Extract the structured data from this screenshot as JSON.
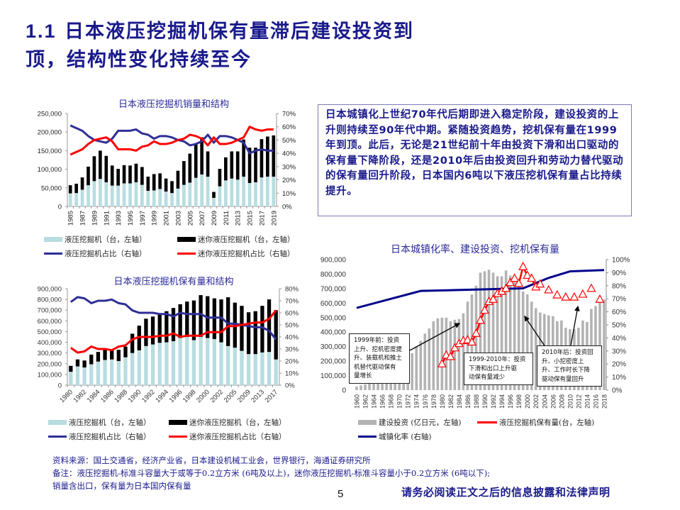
{
  "page": {
    "title_num": "1.1",
    "title_line1": "日本液压挖掘机保有量滞后建设投资到",
    "title_line2": "顶，结构性变化持续至今",
    "summary": "日本城镇化上世纪70年代后期即进入稳定阶段，建设投资的上升则持续至90年代中期。紧随投资趋势，挖机保有量在1999年到顶。此后，无论是21世纪前十年由投资下滑和出口驱动的保有量下降阶段，还是2010年后由投资回升和劳动力替代驱动的保有量回升阶段，日本国内6吨以下液压挖机保有量占比持续提升。",
    "footer": {
      "source": "资料来源：国土交通省，经济产业省，日本建设机械工业会，世界银行，海通证券研究所",
      "note": "备注：液压挖掘机-标准斗容量大于或等于0.2立方米 (6吨及以上)，迷你液压挖掘机-标准斗容量小于0.2立方米 (6吨以下);",
      "note2": "销量含出口，保有量为日本国内保有量",
      "page_number": "5",
      "disclaimer": "请务必阅读正文之后的信息披露和法律声明"
    },
    "colors": {
      "title": "#1a1a8c",
      "hydraulic": "#b7dde0",
      "mini": "#000000",
      "hyd_share": "#2e2e96",
      "mini_share": "#ff0000",
      "investment": "#b3b3b3",
      "urban": "#00008b"
    }
  },
  "chart_data": [
    {
      "type": "bar",
      "title": "日本液压挖掘机销量和结构",
      "stacked": true,
      "categories": [
        "1985",
        "1986",
        "1987",
        "1988",
        "1989",
        "1990",
        "1991",
        "1992",
        "1993",
        "1994",
        "1995",
        "1996",
        "1997",
        "1998",
        "1999",
        "2000",
        "2001",
        "2002",
        "2003",
        "2004",
        "2005",
        "2006",
        "2007",
        "2008",
        "2009",
        "2010",
        "2011",
        "2012",
        "2013",
        "2014",
        "2015",
        "2016",
        "2017",
        "2018",
        "2019"
      ],
      "x_tick_labels": [
        "1985",
        "1987",
        "1989",
        "1991",
        "1993",
        "1995",
        "1997",
        "1999",
        "2001",
        "2003",
        "2005",
        "2007",
        "2009",
        "2011",
        "2013",
        "2015",
        "2017",
        "2019"
      ],
      "series": [
        {
          "name": "液压挖掘机（台，左轴）",
          "axis": "left",
          "kind": "bar",
          "values": [
            35000,
            36000,
            45000,
            57000,
            68000,
            74000,
            65000,
            56000,
            56000,
            62000,
            62000,
            65000,
            58000,
            42000,
            43000,
            47000,
            40000,
            36000,
            48000,
            58000,
            64000,
            77000,
            86000,
            80000,
            23000,
            54000,
            70000,
            75000,
            72000,
            80000,
            63000,
            65000,
            78000,
            80000,
            80000
          ]
        },
        {
          "name": "迷你液压挖掘机（台，左轴）",
          "axis": "left",
          "kind": "bar",
          "values": [
            22000,
            25000,
            33000,
            50000,
            67000,
            76000,
            71000,
            54000,
            45000,
            49000,
            48000,
            50000,
            48000,
            38000,
            44000,
            42000,
            35000,
            32000,
            48000,
            64000,
            78000,
            90000,
            100000,
            68000,
            16000,
            47000,
            62000,
            73000,
            76000,
            100000,
            95000,
            93000,
            103000,
            108000,
            111000
          ]
        },
        {
          "name": "液压挖掘机占比（右轴）",
          "axis": "right",
          "kind": "line",
          "values": [
            61,
            59,
            57,
            53,
            50,
            49,
            48,
            51,
            57,
            57,
            57,
            58,
            55,
            54,
            51,
            53,
            53,
            52,
            50,
            49,
            46,
            47,
            49,
            54,
            48,
            53,
            53,
            52,
            50,
            48,
            40,
            42,
            43,
            42,
            42
          ]
        },
        {
          "name": "迷你液压挖掘机占比（右轴）",
          "axis": "right",
          "kind": "line",
          "values": [
            39,
            41,
            43,
            47,
            50,
            51,
            52,
            49,
            43,
            43,
            43,
            42,
            45,
            46,
            49,
            47,
            47,
            48,
            50,
            51,
            54,
            53,
            51,
            46,
            52,
            47,
            47,
            48,
            50,
            52,
            60,
            58,
            57,
            58,
            58
          ]
        }
      ],
      "ylim_left": [
        0,
        250000
      ],
      "y_ticks_left": [
        "0",
        "50,000",
        "100,000",
        "150,000",
        "200,000",
        "250,000"
      ],
      "ylim_right": [
        0,
        70
      ],
      "y_ticks_right": [
        "0%",
        "10%",
        "20%",
        "30%",
        "40%",
        "50%",
        "60%",
        "70%"
      ],
      "legend": [
        "液压挖掘机（台，左轴）",
        "迷你液压挖掘机（台，左轴）",
        "液压挖掘机占比（右轴）",
        "迷你液压挖掘机占比（右轴）"
      ],
      "legend_position": "bottom"
    },
    {
      "type": "bar",
      "title": "日本液压挖掘机保有量和结构",
      "stacked": true,
      "categories": [
        "1980",
        "1981",
        "1982",
        "1983",
        "1984",
        "1985",
        "1986",
        "1987",
        "1988",
        "1989",
        "1990",
        "1991",
        "1992",
        "1993",
        "1994",
        "1995",
        "1996",
        "1997",
        "1998",
        "1999",
        "2000",
        "2001",
        "2002",
        "2003",
        "2005",
        "2007",
        "2009",
        "2011",
        "2013",
        "2015",
        "2017"
      ],
      "x_tick_labels": [
        "1980",
        "1982",
        "1984",
        "1986",
        "1988",
        "1990",
        "1992",
        "1994",
        "1996",
        "1998",
        "2000",
        "2002",
        "2005",
        "2009",
        "2013",
        "2017"
      ],
      "series": [
        {
          "name": "液压挖掘机（台，左轴）",
          "axis": "left",
          "kind": "bar",
          "values": [
            125000,
            175000,
            165000,
            195000,
            220000,
            235000,
            240000,
            225000,
            260000,
            300000,
            325000,
            365000,
            380000,
            395000,
            400000,
            410000,
            440000,
            450000,
            420000,
            450000,
            440000,
            430000,
            400000,
            365000,
            350000,
            320000,
            290000,
            290000,
            305000,
            310000,
            240000
          ]
        },
        {
          "name": "迷你液压挖掘机（台，左轴）",
          "axis": "left",
          "kind": "bar",
          "values": [
            55000,
            65000,
            65000,
            90000,
            90000,
            105000,
            90000,
            105000,
            100000,
            180000,
            230000,
            255000,
            260000,
            270000,
            290000,
            310000,
            315000,
            330000,
            370000,
            390000,
            390000,
            380000,
            400000,
            455000,
            420000,
            420000,
            390000,
            400000,
            435000,
            490000,
            460000
          ]
        },
        {
          "name": "液压挖掘机占比（右轴）",
          "axis": "right",
          "kind": "line",
          "values": [
            69,
            73,
            72,
            68,
            70,
            70,
            71,
            68,
            67,
            62,
            60,
            60,
            60,
            59,
            59,
            57,
            60,
            59,
            59,
            59,
            56,
            56,
            56,
            51,
            51,
            50,
            49,
            48,
            48,
            45,
            38
          ]
        },
        {
          "name": "迷你液压挖掘机占比（右轴）",
          "axis": "right",
          "kind": "line",
          "values": [
            31,
            27,
            28,
            32,
            30,
            30,
            29,
            32,
            33,
            38,
            40,
            40,
            40,
            41,
            41,
            43,
            40,
            41,
            41,
            41,
            44,
            44,
            44,
            49,
            49,
            50,
            51,
            52,
            52,
            55,
            62
          ]
        }
      ],
      "ylim_left": [
        0,
        900000
      ],
      "y_ticks_left": [
        "0",
        "100,000",
        "200,000",
        "300,000",
        "400,000",
        "500,000",
        "600,000",
        "700,000",
        "800,000",
        "900,000"
      ],
      "ylim_right": [
        0,
        80
      ],
      "y_ticks_right": [
        "0%",
        "10%",
        "20%",
        "30%",
        "40%",
        "50%",
        "60%",
        "70%",
        "80%"
      ],
      "legend": [
        "液压挖掘机（台，左轴）",
        "迷你液压挖掘机（台，左轴）",
        "液压挖掘机占比（右轴）",
        "迷你液压挖掘机占比（右轴）"
      ],
      "legend_position": "bottom"
    },
    {
      "type": "bar",
      "title": "日本城镇化率、建设投资、挖机保有量",
      "x_start": 1960,
      "x_end": 2018,
      "x_tick_labels": [
        "1960",
        "1962",
        "1964",
        "1966",
        "1968",
        "1970",
        "1972",
        "1974",
        "1976",
        "1978",
        "1980",
        "1982",
        "1984",
        "1986",
        "1988",
        "1990",
        "1992",
        "1994",
        "1996",
        "1998",
        "2000",
        "2002",
        "2004",
        "2006",
        "2008",
        "2010",
        "2012",
        "2014",
        "2016",
        "2018"
      ],
      "series": [
        {
          "name": "建设投资 (亿日元，左轴)",
          "axis": "left",
          "kind": "bar",
          "values": [
            25000,
            32000,
            40000,
            50000,
            60000,
            68000,
            78000,
            95000,
            110000,
            130000,
            155000,
            175000,
            215000,
            255000,
            300000,
            340000,
            390000,
            425000,
            475000,
            495000,
            500000,
            500000,
            475000,
            485000,
            490000,
            530000,
            610000,
            660000,
            720000,
            810000,
            820000,
            830000,
            810000,
            785000,
            785000,
            825000,
            790000,
            750000,
            720000,
            680000,
            660000,
            610000,
            565000,
            535000,
            525000,
            515000,
            510000,
            475000,
            480000,
            430000,
            420000,
            420000,
            430000,
            480000,
            470000,
            560000,
            580000,
            610000,
            625000
          ]
        },
        {
          "name": "液压挖掘机保有量(台，左轴)",
          "axis": "left",
          "kind": "line",
          "x": [
            1980,
            1981,
            1982,
            1983,
            1984,
            1985,
            1986,
            1987,
            1988,
            1989,
            1990,
            1991,
            1992,
            1993,
            1994,
            1995,
            1996,
            1997,
            1998,
            1999,
            2000,
            2001,
            2002,
            2003,
            2005,
            2007,
            2009,
            2011,
            2013,
            2015,
            2017
          ],
          "values": [
            180000,
            240000,
            230000,
            290000,
            320000,
            340000,
            345000,
            330000,
            390000,
            480000,
            550000,
            610000,
            625000,
            665000,
            680000,
            700000,
            740000,
            770000,
            735000,
            850000,
            790000,
            770000,
            710000,
            730000,
            690000,
            655000,
            640000,
            640000,
            660000,
            700000,
            625000
          ]
        },
        {
          "name": "城镇化率 (右轴)",
          "axis": "right",
          "kind": "line",
          "x": [
            1960,
            1975,
            1999,
            2005,
            2010,
            2018
          ],
          "values": [
            63,
            76,
            78,
            86,
            91,
            92
          ]
        }
      ],
      "ylim_left": [
        0,
        900000
      ],
      "y_ticks_left": [
        "0",
        "100,000",
        "200,000",
        "300,000",
        "400,000",
        "500,000",
        "600,000",
        "700,000",
        "800,000",
        "900,000"
      ],
      "ylim_right": [
        0,
        100
      ],
      "y_ticks_right": [
        "0%",
        "10%",
        "20%",
        "30%",
        "40%",
        "50%",
        "60%",
        "70%",
        "80%",
        "90%",
        "100%"
      ],
      "annotations": [
        "1999年前：投资上升、挖机密度提升、装载机和推土机替代驱动保有量增长",
        "1999-2010年：投资下滑和出口上升驱动保有量减少",
        "2010年后：投资回升、小挖密度上升、工作时长下降驱动保有量回升"
      ],
      "legend": [
        "建设投资 (亿日元，左轴)",
        "液压挖掘机保有量(台，左轴)",
        "城镇化率 (右轴)"
      ],
      "legend_position": "bottom"
    }
  ],
  "legend1": {
    "a": "液压挖掘机（台，左轴）",
    "b": "迷你液压挖掘机（台，左轴）",
    "c": "液压挖掘机占比（右轴）",
    "d": "迷你液压挖掘机占比（右轴）"
  },
  "legend3": {
    "a": "建设投资 (亿日元，左轴)",
    "b": "液压挖掘机保有量(台，左轴)",
    "c": "城镇化率 (右轴)"
  },
  "annot": {
    "a": [
      "1999年前：投资",
      "上升、挖机密度提",
      "升、装载机和推土",
      "机替代驱动保有",
      "量增长"
    ],
    "b": [
      "1999-2010年：投资",
      "下滑和出口上升驱",
      "动保有量减少"
    ],
    "c": [
      "2010年后：投资回",
      "升、小挖密度上",
      "升、工作时长下降",
      "驱动保有量回升"
    ]
  }
}
